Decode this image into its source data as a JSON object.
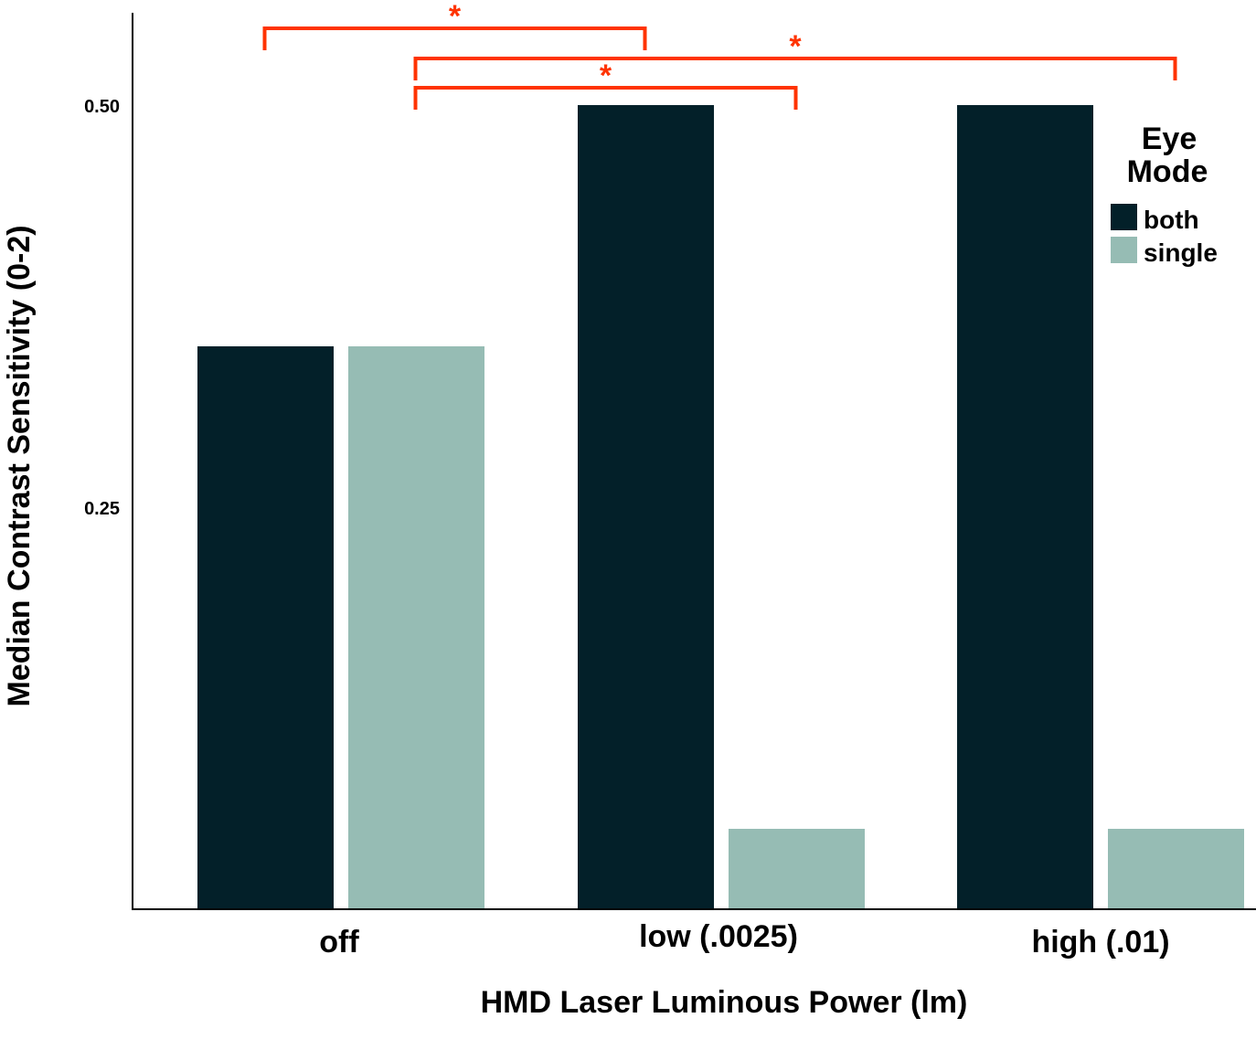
{
  "chart_data": {
    "type": "bar",
    "title": "",
    "xlabel": "HMD Laser Luminous Power (lm)",
    "ylabel": "Median Contrast Sensitivity (0-2)",
    "categories": [
      "off",
      "low (.0025)",
      "high (.01)"
    ],
    "series": [
      {
        "name": "both",
        "color": "#032029",
        "values": [
          0.35,
          0.5,
          0.5
        ]
      },
      {
        "name": "single",
        "color": "#96bcb4",
        "values": [
          0.35,
          0.05,
          0.05
        ]
      }
    ],
    "ylim": [
      0,
      0.56
    ],
    "yticks": [
      0.25,
      0.5
    ],
    "ytick_labels": [
      "0.25",
      "0.50"
    ],
    "grid": false,
    "legend": {
      "title": "Eye\nMode",
      "title_lines": [
        "Eye",
        "Mode"
      ],
      "placement": "top-right"
    },
    "annotations": [
      {
        "type": "significance",
        "label": "*",
        "from": {
          "category": 0,
          "series": 0
        },
        "to": {
          "category": 1,
          "series": 0
        },
        "level": 0,
        "color": "#ff3300"
      },
      {
        "type": "significance",
        "label": "*",
        "from": {
          "category": 0,
          "series": 1
        },
        "to": {
          "category": 2,
          "series": 1
        },
        "level": 1,
        "color": "#ff3300"
      },
      {
        "type": "significance",
        "label": "*",
        "from": {
          "category": 0,
          "series": 1
        },
        "to": {
          "category": 1,
          "series": 1
        },
        "level": 2,
        "color": "#ff3300"
      }
    ]
  }
}
